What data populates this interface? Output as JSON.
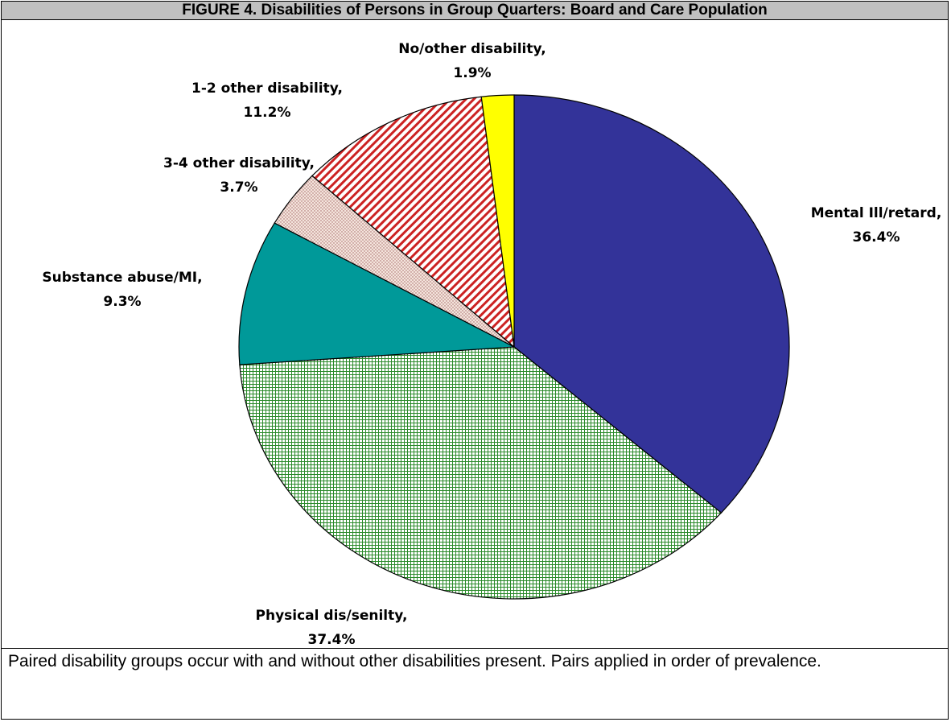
{
  "figure": {
    "title": "FIGURE 4. Disabilities of Persons in Group Quarters: Board and Care Population",
    "note": "Paired disability groups occur with and without other disabilities present. Pairs applied in order of prevalence."
  },
  "chart_data": {
    "type": "pie",
    "title": "FIGURE 4. Disabilities of Persons in Group Quarters: Board and Care Population",
    "slices": [
      {
        "label": "Mental Ill/retard,",
        "value": 36.4,
        "value_label": "36.4%",
        "color": "#333399",
        "pattern": "solid"
      },
      {
        "label": "Physical dis/senilty,",
        "value": 37.4,
        "value_label": "37.4%",
        "color": "#2a8a2a",
        "pattern": "crosshatch-green"
      },
      {
        "label": "Substance abuse/MI,",
        "value": 9.3,
        "value_label": "9.3%",
        "color": "#009999",
        "pattern": "solid"
      },
      {
        "label": "3-4 other disability,",
        "value": 3.7,
        "value_label": "3.7%",
        "color": "#c08080",
        "pattern": "dots"
      },
      {
        "label": "1-2 other disability,",
        "value": 11.2,
        "value_label": "11.2%",
        "color": "#cc2222",
        "pattern": "diagonal-stripes"
      },
      {
        "label": "No/other disability,",
        "value": 1.9,
        "value_label": "1.9%",
        "color": "#ffff00",
        "pattern": "solid"
      }
    ],
    "start_angle": "12 o'clock, clockwise",
    "legend": "none (slice labels)"
  }
}
